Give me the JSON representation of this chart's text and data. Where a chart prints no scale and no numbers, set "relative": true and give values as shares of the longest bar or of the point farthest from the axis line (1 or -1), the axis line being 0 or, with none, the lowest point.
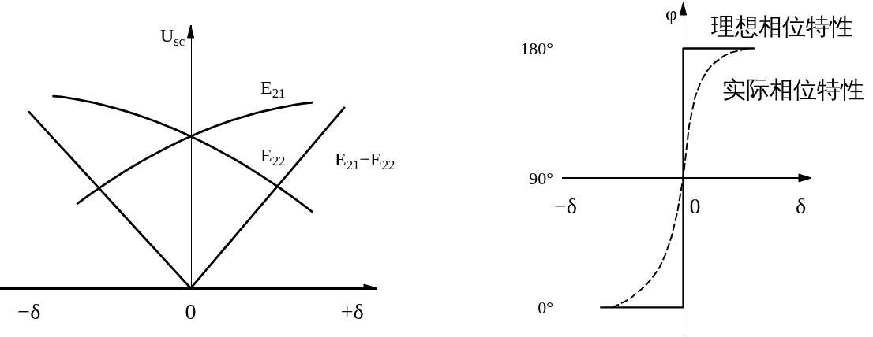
{
  "chart_data": [
    {
      "type": "line",
      "relative": true,
      "ylabel": "U$_{sc}$",
      "categories": [
        "−δ",
        null,
        null,
        null,
        null,
        null,
        null,
        null,
        null,
        null,
        null,
        null,
        null,
        null,
        null,
        null,
        null,
        null,
        null,
        null,
        "0",
        null,
        null,
        null,
        null,
        null,
        null,
        null,
        null,
        null,
        null,
        null,
        null,
        null,
        null,
        null,
        null,
        null,
        null,
        null,
        "+δ"
      ],
      "legend": false,
      "grid": false,
      "marker": "none",
      "line_style": "solid",
      "series": [
        {
          "name": "E$_{21}$",
          "color": "#000000",
          "values": [
            null,
            null,
            null,
            null,
            null,
            null,
            0.441,
            0.472,
            0.502,
            0.531,
            0.559,
            0.586,
            0.613,
            0.638,
            0.663,
            0.686,
            0.709,
            0.731,
            0.752,
            0.772,
            0.791,
            0.809,
            0.826,
            0.843,
            0.858,
            0.873,
            0.886,
            0.899,
            0.911,
            0.921,
            0.931,
            0.94,
            0.948,
            0.956,
            0.962,
            0.967,
            null,
            null,
            null,
            null,
            null
          ]
        },
        {
          "name": "E$_{22}$",
          "color": "#000000",
          "values": [
            null,
            null,
            null,
            1.0,
            0.997,
            0.99,
            0.983,
            0.975,
            0.966,
            0.956,
            0.945,
            0.934,
            0.921,
            0.908,
            0.894,
            0.879,
            0.863,
            0.846,
            0.829,
            0.81,
            0.791,
            0.771,
            0.75,
            0.728,
            0.705,
            0.682,
            0.658,
            0.633,
            0.606,
            0.579,
            0.551,
            0.523,
            0.493,
            0.463,
            0.431,
            0.399,
            null,
            null,
            null,
            null,
            null
          ]
        },
        {
          "name": "E$_{21}$−E$_{22}$",
          "color": "#000000",
          "values": [
            0.918,
            0.872,
            0.826,
            0.78,
            0.734,
            0.689,
            0.643,
            0.597,
            0.551,
            0.505,
            0.459,
            0.413,
            0.367,
            0.321,
            0.275,
            0.23,
            0.184,
            0.138,
            0.092,
            0.046,
            0,
            0.049,
            0.099,
            0.148,
            0.198,
            0.247,
            0.297,
            0.346,
            0.396,
            0.445,
            0.495,
            0.544,
            0.593,
            0.643,
            0.692,
            0.742,
            0.791,
            0.841,
            0.89,
            0.94,
            null
          ]
        }
      ]
    },
    {
      "type": "line",
      "ylabel": "φ",
      "categories": [
        "−δ",
        null,
        null,
        null,
        null,
        null,
        null,
        null,
        null,
        null,
        null,
        null,
        null,
        null,
        null,
        null,
        null,
        null,
        null,
        null,
        null,
        null,
        "0",
        null,
        null,
        null,
        null,
        null,
        null,
        null,
        null,
        null,
        null,
        null,
        null,
        null,
        null,
        null,
        null,
        null,
        "δ"
      ],
      "ylim": [
        -20,
        212
      ],
      "yticks": [
        {
          "value": 0,
          "label": "0°"
        },
        {
          "value": 90,
          "label": "90°"
        },
        {
          "value": 180,
          "label": "180°"
        }
      ],
      "legend": false,
      "grid": false,
      "marker": "none",
      "series": [
        {
          "name": "理想相位特性",
          "type": "step",
          "color": "#000000",
          "line_style": "solid",
          "values": [
            null,
            null,
            null,
            null,
            null,
            null,
            0,
            0,
            0,
            0,
            0,
            0,
            0,
            0,
            0,
            0,
            0,
            0,
            0,
            0,
            180,
            180,
            180,
            180,
            180,
            180,
            180,
            180,
            180,
            180,
            180,
            180,
            180,
            null,
            null,
            null,
            null,
            null,
            null,
            null,
            null
          ]
        },
        {
          "name": "实际相位特性",
          "color": "#000000",
          "line_style": "dashed",
          "values": [
            null,
            null,
            null,
            null,
            null,
            null,
            null,
            null,
            0,
            2,
            4,
            6,
            10,
            13,
            17,
            22,
            28,
            37,
            49,
            66,
            90,
            126,
            146,
            157,
            164,
            169,
            172,
            175,
            177,
            178,
            179,
            180,
            null,
            null,
            null,
            null,
            null,
            null,
            null,
            null,
            null
          ]
        }
      ]
    }
  ]
}
